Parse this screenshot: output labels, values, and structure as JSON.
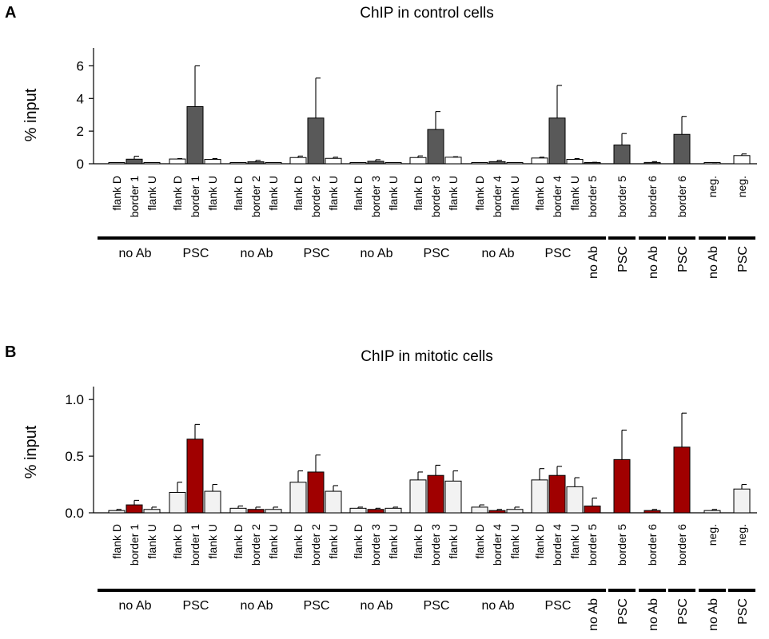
{
  "chart_data": [
    {
      "type": "bar",
      "panel_label": "A",
      "title": "ChIP in control cells",
      "ylabel": "% input",
      "xlabel": "",
      "ylim": [
        0,
        7
      ],
      "yticks": [
        0,
        2,
        4,
        6
      ],
      "ytick_labels": [
        "0",
        "2",
        "4",
        "6"
      ],
      "grid": false,
      "groups": [
        {
          "label": "no Ab",
          "bars": [
            {
              "category": "flank D",
              "value": 0.03,
              "error": 0,
              "color": "white"
            },
            {
              "category": "border 1",
              "value": 0.28,
              "error": 0.18,
              "color": "dark"
            },
            {
              "category": "flank U",
              "value": 0.04,
              "error": 0,
              "color": "white"
            }
          ]
        },
        {
          "label": "PSC",
          "bars": [
            {
              "category": "flank D",
              "value": 0.29,
              "error": 0.03,
              "color": "white"
            },
            {
              "category": "border 1",
              "value": 3.5,
              "error": 2.5,
              "color": "dark"
            },
            {
              "category": "flank U",
              "value": 0.27,
              "error": 0.05,
              "color": "white"
            }
          ]
        },
        {
          "label": "no Ab",
          "bars": [
            {
              "category": "flank D",
              "value": 0.03,
              "error": 0,
              "color": "white"
            },
            {
              "category": "border 2",
              "value": 0.12,
              "error": 0.09,
              "color": "dark"
            },
            {
              "category": "flank U",
              "value": 0.03,
              "error": 0,
              "color": "white"
            }
          ]
        },
        {
          "label": "PSC",
          "bars": [
            {
              "category": "flank D",
              "value": 0.38,
              "error": 0.09,
              "color": "white"
            },
            {
              "category": "border 2",
              "value": 2.8,
              "error": 2.45,
              "color": "dark"
            },
            {
              "category": "flank U",
              "value": 0.33,
              "error": 0.07,
              "color": "white"
            }
          ]
        },
        {
          "label": "no Ab",
          "bars": [
            {
              "category": "flank D",
              "value": 0.03,
              "error": 0,
              "color": "white"
            },
            {
              "category": "border 3",
              "value": 0.15,
              "error": 0.1,
              "color": "dark"
            },
            {
              "category": "flank U",
              "value": 0.04,
              "error": 0,
              "color": "white"
            }
          ]
        },
        {
          "label": "PSC",
          "bars": [
            {
              "category": "flank D",
              "value": 0.38,
              "error": 0.1,
              "color": "white"
            },
            {
              "category": "border 3",
              "value": 2.1,
              "error": 1.1,
              "color": "dark"
            },
            {
              "category": "flank U",
              "value": 0.4,
              "error": 0.03,
              "color": "white"
            }
          ]
        },
        {
          "label": "no Ab",
          "bars": [
            {
              "category": "flank D",
              "value": 0.03,
              "error": 0,
              "color": "white"
            },
            {
              "category": "border 4",
              "value": 0.13,
              "error": 0.08,
              "color": "dark"
            },
            {
              "category": "flank U",
              "value": 0.03,
              "error": 0,
              "color": "white"
            }
          ]
        },
        {
          "label": "PSC",
          "bars": [
            {
              "category": "flank D",
              "value": 0.35,
              "error": 0.05,
              "color": "white"
            },
            {
              "category": "border 4",
              "value": 2.8,
              "error": 2.0,
              "color": "dark"
            },
            {
              "category": "flank U",
              "value": 0.27,
              "error": 0.05,
              "color": "white"
            }
          ]
        },
        {
          "label": "no Ab",
          "bars": [
            {
              "category": "border 5",
              "value": 0.06,
              "error": 0.03,
              "color": "dark"
            }
          ]
        },
        {
          "label": "PSC",
          "bars": [
            {
              "category": "border 5",
              "value": 1.15,
              "error": 0.7,
              "color": "dark"
            }
          ]
        },
        {
          "label": "no Ab",
          "bars": [
            {
              "category": "border 6",
              "value": 0.08,
              "error": 0.05,
              "color": "dark"
            }
          ]
        },
        {
          "label": "PSC",
          "bars": [
            {
              "category": "border 6",
              "value": 1.8,
              "error": 1.1,
              "color": "dark"
            }
          ]
        },
        {
          "label": "no Ab",
          "bars": [
            {
              "category": "neg.",
              "value": 0.05,
              "error": 0.02,
              "color": "white"
            }
          ]
        },
        {
          "label": "PSC",
          "bars": [
            {
              "category": "neg.",
              "value": 0.5,
              "error": 0.1,
              "color": "white"
            }
          ]
        }
      ]
    },
    {
      "type": "bar",
      "panel_label": "B",
      "title": "ChIP in mitotic cells",
      "ylabel": "% input",
      "xlabel": "",
      "ylim": [
        0,
        1.1
      ],
      "yticks": [
        0,
        0.5,
        1.0
      ],
      "ytick_labels": [
        "0.0",
        "0.5",
        "1.0"
      ],
      "grid": false,
      "groups": [
        {
          "label": "no Ab",
          "bars": [
            {
              "category": "flank D",
              "value": 0.02,
              "error": 0.01,
              "color": "light"
            },
            {
              "category": "border 1",
              "value": 0.07,
              "error": 0.04,
              "color": "red"
            },
            {
              "category": "flank U",
              "value": 0.03,
              "error": 0.02,
              "color": "light"
            }
          ]
        },
        {
          "label": "PSC",
          "bars": [
            {
              "category": "flank D",
              "value": 0.18,
              "error": 0.09,
              "color": "light"
            },
            {
              "category": "border 1",
              "value": 0.65,
              "error": 0.13,
              "color": "red"
            },
            {
              "category": "flank U",
              "value": 0.19,
              "error": 0.06,
              "color": "light"
            }
          ]
        },
        {
          "label": "no Ab",
          "bars": [
            {
              "category": "flank D",
              "value": 0.04,
              "error": 0.02,
              "color": "light"
            },
            {
              "category": "border 2",
              "value": 0.03,
              "error": 0.02,
              "color": "red"
            },
            {
              "category": "flank U",
              "value": 0.03,
              "error": 0.02,
              "color": "light"
            }
          ]
        },
        {
          "label": "PSC",
          "bars": [
            {
              "category": "flank D",
              "value": 0.27,
              "error": 0.1,
              "color": "light"
            },
            {
              "category": "border 2",
              "value": 0.36,
              "error": 0.15,
              "color": "red"
            },
            {
              "category": "flank U",
              "value": 0.19,
              "error": 0.05,
              "color": "light"
            }
          ]
        },
        {
          "label": "no Ab",
          "bars": [
            {
              "category": "flank D",
              "value": 0.04,
              "error": 0.01,
              "color": "light"
            },
            {
              "category": "border 3",
              "value": 0.03,
              "error": 0.01,
              "color": "red"
            },
            {
              "category": "flank U",
              "value": 0.04,
              "error": 0.01,
              "color": "light"
            }
          ]
        },
        {
          "label": "PSC",
          "bars": [
            {
              "category": "flank D",
              "value": 0.29,
              "error": 0.07,
              "color": "light"
            },
            {
              "category": "border 3",
              "value": 0.33,
              "error": 0.09,
              "color": "red"
            },
            {
              "category": "flank U",
              "value": 0.28,
              "error": 0.09,
              "color": "light"
            }
          ]
        },
        {
          "label": "no Ab",
          "bars": [
            {
              "category": "flank D",
              "value": 0.05,
              "error": 0.02,
              "color": "light"
            },
            {
              "category": "border 4",
              "value": 0.02,
              "error": 0.01,
              "color": "red"
            },
            {
              "category": "flank U",
              "value": 0.03,
              "error": 0.02,
              "color": "light"
            }
          ]
        },
        {
          "label": "PSC",
          "bars": [
            {
              "category": "flank D",
              "value": 0.29,
              "error": 0.1,
              "color": "light"
            },
            {
              "category": "border 4",
              "value": 0.33,
              "error": 0.08,
              "color": "red"
            },
            {
              "category": "flank U",
              "value": 0.23,
              "error": 0.08,
              "color": "light"
            }
          ]
        },
        {
          "label": "no Ab",
          "bars": [
            {
              "category": "border 5",
              "value": 0.06,
              "error": 0.07,
              "color": "red"
            }
          ]
        },
        {
          "label": "PSC",
          "bars": [
            {
              "category": "border 5",
              "value": 0.47,
              "error": 0.26,
              "color": "red"
            }
          ]
        },
        {
          "label": "no Ab",
          "bars": [
            {
              "category": "border 6",
              "value": 0.02,
              "error": 0.01,
              "color": "red"
            }
          ]
        },
        {
          "label": "PSC",
          "bars": [
            {
              "category": "border 6",
              "value": 0.58,
              "error": 0.3,
              "color": "red"
            }
          ]
        },
        {
          "label": "no Ab",
          "bars": [
            {
              "category": "neg.",
              "value": 0.02,
              "error": 0.01,
              "color": "light"
            }
          ]
        },
        {
          "label": "PSC",
          "bars": [
            {
              "category": "neg.",
              "value": 0.21,
              "error": 0.04,
              "color": "light"
            }
          ]
        }
      ]
    }
  ],
  "colors": {
    "white": "#ffffff",
    "light": "#f2f2f2",
    "dark": "#595959",
    "red": "#a00000",
    "stroke": "#000000"
  }
}
